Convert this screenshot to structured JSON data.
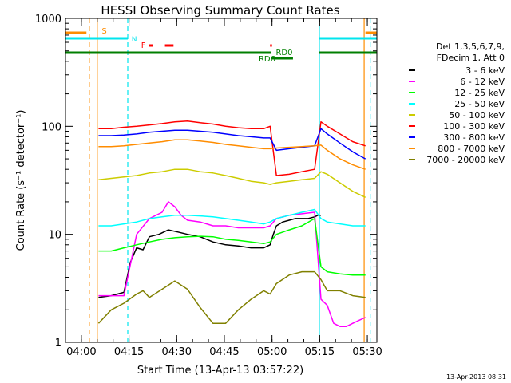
{
  "chart_data": {
    "type": "line",
    "title": "HESSI Observing Summary Count Rates",
    "xlabel": "Start Time (13-Apr-13 03:57:22)",
    "ylabel": "Count Rate (s⁻¹ detector⁻¹)",
    "yscale": "log",
    "ylim": [
      1,
      1000
    ],
    "xlim_minutes": [
      -2.4,
      95.6
    ],
    "x_tick_labels": [
      "04:00",
      "04:15",
      "04:30",
      "04:45",
      "05:00",
      "05:15",
      "05:30"
    ],
    "x_tick_minutes": [
      2.6,
      17.6,
      32.6,
      47.6,
      62.6,
      77.6,
      92.6
    ],
    "y_tick_labels": [
      "1",
      "10",
      "100",
      "1000"
    ],
    "y_tick_values": [
      1,
      10,
      100,
      1000
    ],
    "legend": {
      "placement": "right",
      "header": [
        "Det 1,3,5,6,7,9,",
        "FDecim 1, Att 0"
      ]
    },
    "footer_timestamp": "13-Apr-2013 08:31",
    "markers": {
      "S": {
        "label": "S",
        "color": "#ff8c00"
      },
      "N": {
        "label": "N",
        "color": "#00e5ee"
      },
      "F": {
        "label": "F",
        "color": "#ff0000"
      },
      "RD0": {
        "label": "RD0",
        "color": "#007f00"
      },
      "RD6": {
        "label": "RD6",
        "color": "#007f00"
      }
    },
    "series": [
      {
        "name": "3 - 6 keV",
        "color": "#000000",
        "x": [
          8,
          12,
          16,
          18,
          20,
          22,
          24,
          27,
          30,
          33,
          36,
          40,
          44,
          48,
          52,
          56,
          60,
          62,
          63,
          64,
          66,
          68,
          70,
          72,
          74,
          76,
          77,
          78
        ],
        "y": [
          2.6,
          2.7,
          2.9,
          5.5,
          7.5,
          7.2,
          9.5,
          10,
          11,
          10.5,
          10,
          9.5,
          8.5,
          8,
          7.8,
          7.5,
          7.5,
          8,
          10,
          12,
          13,
          13.5,
          14,
          14,
          14,
          14.5,
          15,
          15
        ]
      },
      {
        "name": "6 - 12 keV",
        "color": "#ff00ff",
        "x": [
          8,
          12,
          16,
          20,
          24,
          28,
          30,
          32,
          34,
          36,
          40,
          44,
          48,
          52,
          56,
          60,
          62,
          64,
          68,
          72,
          76,
          78,
          80,
          82,
          84,
          86,
          88,
          90,
          92
        ],
        "y": [
          2.7,
          2.7,
          2.7,
          10,
          14,
          16,
          20,
          18,
          15,
          13.5,
          13,
          12,
          12,
          11.5,
          11.5,
          11.5,
          12,
          14,
          15,
          15.5,
          16,
          2.5,
          2.2,
          1.5,
          1.4,
          1.4,
          1.5,
          1.6,
          1.7
        ]
      },
      {
        "name": "12 - 25 keV",
        "color": "#00ff00",
        "x": [
          8,
          12,
          16,
          20,
          24,
          28,
          32,
          36,
          40,
          44,
          48,
          52,
          56,
          60,
          62,
          64,
          68,
          72,
          76,
          78,
          80,
          84,
          88,
          92
        ],
        "y": [
          7,
          7,
          7.5,
          8,
          8.5,
          9,
          9.3,
          9.5,
          9.6,
          9.5,
          9,
          8.8,
          8.5,
          8.2,
          8.5,
          10,
          11,
          12,
          14,
          5,
          4.5,
          4.3,
          4.2,
          4.2
        ]
      },
      {
        "name": "25 - 50 keV",
        "color": "#00ffff",
        "x": [
          8,
          12,
          16,
          20,
          24,
          28,
          32,
          36,
          40,
          44,
          48,
          52,
          56,
          60,
          62,
          64,
          68,
          72,
          76,
          78,
          80,
          84,
          88,
          92
        ],
        "y": [
          12,
          12,
          12.5,
          13,
          14,
          14.5,
          15,
          15,
          14.8,
          14.5,
          14,
          13.5,
          13,
          12.5,
          13,
          14,
          15,
          16,
          17,
          14,
          13,
          12.5,
          12,
          12
        ]
      },
      {
        "name": "50 - 100 keV",
        "color": "#cccc00",
        "x": [
          8,
          12,
          16,
          20,
          24,
          28,
          32,
          36,
          40,
          44,
          48,
          52,
          56,
          60,
          62,
          64,
          68,
          72,
          76,
          78,
          80,
          84,
          88,
          92
        ],
        "y": [
          32,
          33,
          34,
          35,
          37,
          38,
          40,
          40,
          38,
          37,
          35,
          33,
          31,
          30,
          29,
          30,
          31,
          32,
          33,
          38,
          36,
          30,
          25,
          22
        ]
      },
      {
        "name": "100 - 300 keV",
        "color": "#ff0000",
        "x": [
          8,
          12,
          16,
          20,
          24,
          28,
          32,
          36,
          40,
          44,
          48,
          52,
          56,
          60,
          62,
          64,
          68,
          72,
          76,
          78,
          80,
          84,
          88,
          92
        ],
        "y": [
          95,
          95,
          98,
          100,
          103,
          106,
          110,
          112,
          108,
          105,
          100,
          97,
          95,
          95,
          100,
          35,
          36,
          38,
          40,
          110,
          100,
          85,
          72,
          66
        ]
      },
      {
        "name": "300 - 800 keV",
        "color": "#0000ff",
        "x": [
          8,
          12,
          16,
          20,
          24,
          28,
          32,
          36,
          40,
          44,
          48,
          52,
          56,
          60,
          62,
          64,
          68,
          72,
          76,
          78,
          80,
          84,
          88,
          92
        ],
        "y": [
          82,
          82,
          83,
          85,
          88,
          90,
          92,
          92,
          90,
          88,
          85,
          82,
          80,
          78,
          78,
          60,
          62,
          64,
          66,
          95,
          85,
          70,
          58,
          50
        ]
      },
      {
        "name": "800 - 7000 keV",
        "color": "#ff8c00",
        "x": [
          8,
          12,
          16,
          20,
          24,
          28,
          32,
          36,
          40,
          44,
          48,
          52,
          56,
          60,
          62,
          64,
          68,
          72,
          76,
          78,
          80,
          84,
          88,
          92
        ],
        "y": [
          65,
          65,
          66,
          68,
          70,
          72,
          75,
          75,
          73,
          71,
          68,
          66,
          64,
          62,
          62,
          63,
          64,
          65,
          66,
          67,
          60,
          50,
          44,
          40
        ]
      },
      {
        "name": "7000 - 20000 keV",
        "color": "#808000",
        "x": [
          8,
          12,
          16,
          20,
          22,
          24,
          28,
          32,
          36,
          40,
          44,
          48,
          52,
          56,
          60,
          62,
          64,
          68,
          72,
          76,
          78,
          80,
          84,
          88,
          92
        ],
        "y": [
          1.5,
          2.0,
          2.3,
          2.8,
          3.0,
          2.6,
          3.1,
          3.7,
          3.1,
          2.1,
          1.5,
          1.5,
          2.0,
          2.5,
          3.0,
          2.8,
          3.5,
          4.2,
          4.5,
          4.5,
          3.8,
          3.0,
          3.0,
          2.7,
          2.6
        ]
      }
    ]
  }
}
